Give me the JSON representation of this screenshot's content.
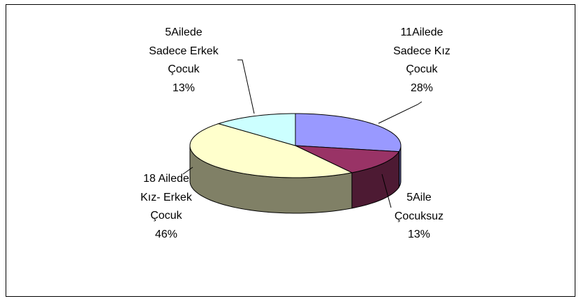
{
  "chart_data": {
    "type": "pie",
    "three_d": true,
    "categories": [
      "11Ailede\nSadece Kız\nÇocuk",
      "5Aile\nÇocuksuz",
      "18 Ailede\nKız- Erkek\nÇocuk",
      "5Ailede\nSadece Erkek\nÇocuk"
    ],
    "values": [
      28,
      13,
      46,
      13
    ],
    "value_labels": [
      "28%",
      "13%",
      "46%",
      "13%"
    ],
    "colors": [
      "#9999ff",
      "#993366",
      "#ffffcc",
      "#ccffff"
    ]
  }
}
